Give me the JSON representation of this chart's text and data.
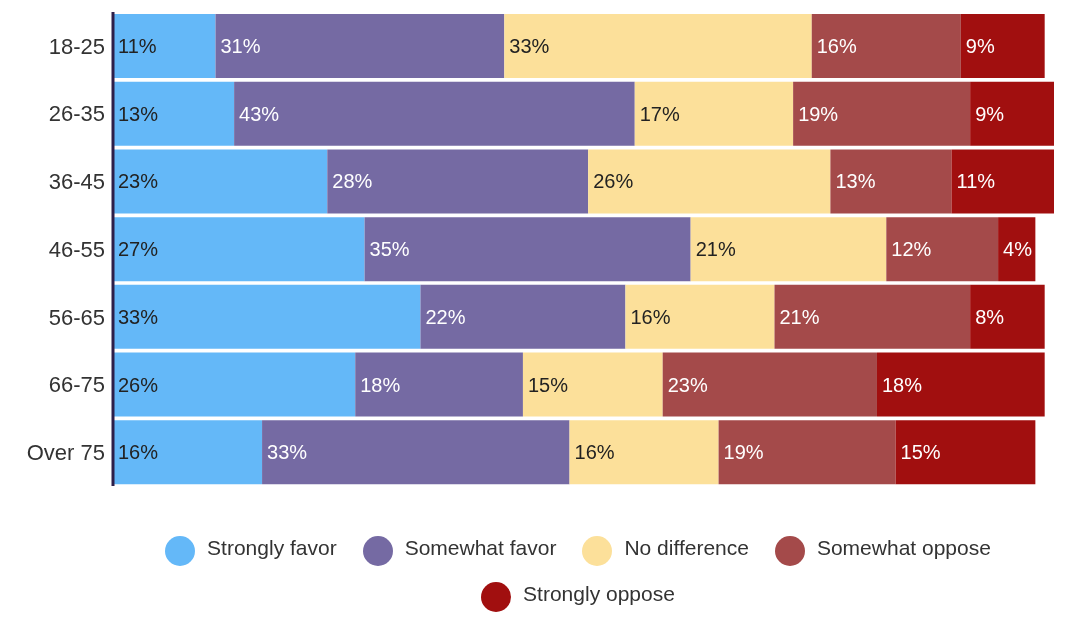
{
  "chart_data": {
    "type": "bar",
    "orientation": "horizontal",
    "stacked": true,
    "legend": "bottom",
    "categories": [
      "18-25",
      "26-35",
      "36-45",
      "46-55",
      "56-65",
      "66-75",
      "Over 75"
    ],
    "series": [
      {
        "name": "Strongly favor",
        "color": "#64b8f8",
        "values": [
          11,
          13,
          23,
          27,
          33,
          26,
          16
        ],
        "value_labels": [
          "11%",
          "13%",
          "23%",
          "27%",
          "33%",
          "26%",
          "16%"
        ]
      },
      {
        "name": "Somewhat favor",
        "color": "#756aa3",
        "values": [
          31,
          43,
          28,
          35,
          22,
          18,
          33
        ],
        "value_labels": [
          "31%",
          "43%",
          "28%",
          "35%",
          "22%",
          "18%",
          "33%"
        ]
      },
      {
        "name": "No difference",
        "color": "#fce09a",
        "values": [
          33,
          17,
          26,
          21,
          16,
          15,
          16
        ],
        "value_labels": [
          "33%",
          "17%",
          "26%",
          "21%",
          "16%",
          "15%",
          "16%"
        ]
      },
      {
        "name": "Somewhat oppose",
        "color": "#a44a4a",
        "values": [
          16,
          19,
          13,
          12,
          21,
          23,
          19
        ],
        "value_labels": [
          "16%",
          "19%",
          "13%",
          "12%",
          "21%",
          "23%",
          "19%"
        ]
      },
      {
        "name": "Strongly oppose",
        "color": "#a10f0f",
        "values": [
          9,
          9,
          11,
          4,
          8,
          18,
          15
        ],
        "value_labels": [
          "9%",
          "9%",
          "11%",
          "4%",
          "8%",
          "18%",
          "15%"
        ]
      }
    ]
  }
}
